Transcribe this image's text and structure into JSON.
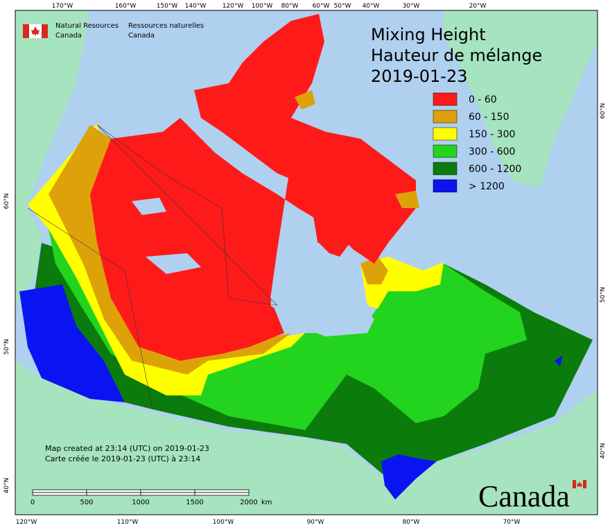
{
  "header": {
    "agency_en": [
      "Natural Resources",
      "Canada"
    ],
    "agency_fr": [
      "Ressources naturelles",
      "Canada"
    ],
    "wordmark": "Canada"
  },
  "title": [
    "Mixing Height",
    "Hauteur de mélange",
    "2019-01-23"
  ],
  "legend": [
    {
      "label": "0 - 60",
      "color": "#ff1a1a"
    },
    {
      "label": "60 - 150",
      "color": "#dda20a"
    },
    {
      "label": "150 - 300",
      "color": "#ffff00"
    },
    {
      "label": "300 - 600",
      "color": "#22d41e"
    },
    {
      "label": "600 - 1200",
      "color": "#0b7c0b"
    },
    {
      "label": "> 1200",
      "color": "#0a14f0"
    }
  ],
  "graticule": {
    "top": [
      "170°W",
      "160°W",
      "150°W",
      "140°W",
      "120°W",
      "100°W",
      "80°W",
      "60°W",
      "50°W",
      "40°W",
      "30°W",
      "20°W"
    ],
    "bottom": [
      "120°W",
      "110°W",
      "100°W",
      "90°W",
      "80°W",
      "70°W"
    ],
    "left": [
      "60°N",
      "50°N",
      "40°N"
    ],
    "right": [
      "60°N",
      "50°N",
      "40°N"
    ]
  },
  "footer": [
    "Map created at 23:14 (UTC) on 2019-01-23",
    "Carte créée le 2019-01-23 (UTC) à 23:14"
  ],
  "scale_bar": {
    "labels": [
      "0",
      "500",
      "1000",
      "1500",
      "2000"
    ],
    "unit": "km"
  }
}
